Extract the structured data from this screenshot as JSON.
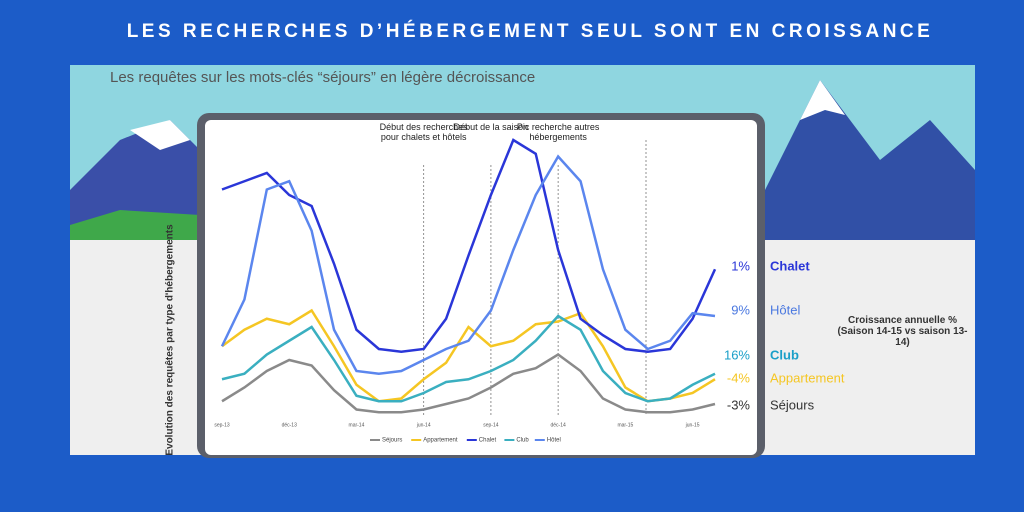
{
  "header": {
    "title": "LES RECHERCHES D’HÉBERGEMENT SEUL SONT EN CROISSANCE"
  },
  "chart_data": {
    "type": "line",
    "subtitle": "Les requêtes sur les mots-clés “séjours” en légère décroissance",
    "y_label": "Evolution des requêtes par type d'hébergements",
    "growth_title": "Croissance annuelle % (Saison 14-15 vs saison 13-14)",
    "categories": [
      "sep-13",
      null,
      null,
      "déc-13",
      null,
      null,
      "mar-14",
      null,
      null,
      "jun-14",
      null,
      null,
      "sep-14",
      null,
      null,
      "déc-14",
      null,
      null,
      "mar-15",
      null,
      null,
      "jun-15",
      null
    ],
    "ylim": [
      0,
      100
    ],
    "annotations": [
      {
        "index": 9,
        "text": "Début des recherches pour chalets et hôtels"
      },
      {
        "index": 12,
        "text": "Début de la saison"
      },
      {
        "index": 15,
        "text": "Pic recherche autres hébergements"
      }
    ],
    "series": [
      {
        "name": "Séjours",
        "color": "#8a8a8a",
        "growth": {
          "value": -3,
          "label": "-3%"
        },
        "label_color": "#333333",
        "values": [
          5,
          10,
          16,
          20,
          18,
          9,
          2,
          1,
          1,
          2,
          4,
          6,
          10,
          15,
          17,
          22,
          16,
          6,
          2,
          1,
          1,
          2,
          4
        ]
      },
      {
        "name": "Appartement",
        "color": "#f5c623",
        "growth": {
          "value": -4,
          "label": "-4%"
        },
        "label_color": "#f5c623",
        "values": [
          25,
          31,
          35,
          33,
          38,
          25,
          11,
          5,
          6,
          13,
          19,
          32,
          25,
          27,
          33,
          34,
          37,
          25,
          10,
          5,
          6,
          8,
          13
        ]
      },
      {
        "name": "Chalet",
        "color": "#2a36d8",
        "growth": {
          "value": 1,
          "label": "1%"
        },
        "label_color": "#2a36d8",
        "values": [
          82,
          85,
          88,
          80,
          76,
          55,
          31,
          24,
          23,
          24,
          35,
          58,
          80,
          100,
          95,
          60,
          35,
          29,
          24,
          23,
          24,
          35,
          53
        ]
      },
      {
        "name": "Club",
        "color": "#3aafc0",
        "growth": {
          "value": 16,
          "label": "16%"
        },
        "label_color": "#1a9fc8",
        "values": [
          13,
          15,
          22,
          27,
          32,
          20,
          7,
          5,
          5,
          8,
          12,
          13,
          16,
          20,
          27,
          36,
          31,
          16,
          8,
          5,
          6,
          11,
          15
        ]
      },
      {
        "name": "Hôtel",
        "color": "#5b86ee",
        "growth": {
          "value": 9,
          "label": "9%"
        },
        "label_color": "#4a78e0",
        "values": [
          25,
          42,
          82,
          85,
          67,
          31,
          16,
          15,
          16,
          20,
          24,
          27,
          38,
          60,
          80,
          94,
          85,
          53,
          31,
          24,
          27,
          37,
          36
        ]
      }
    ]
  }
}
